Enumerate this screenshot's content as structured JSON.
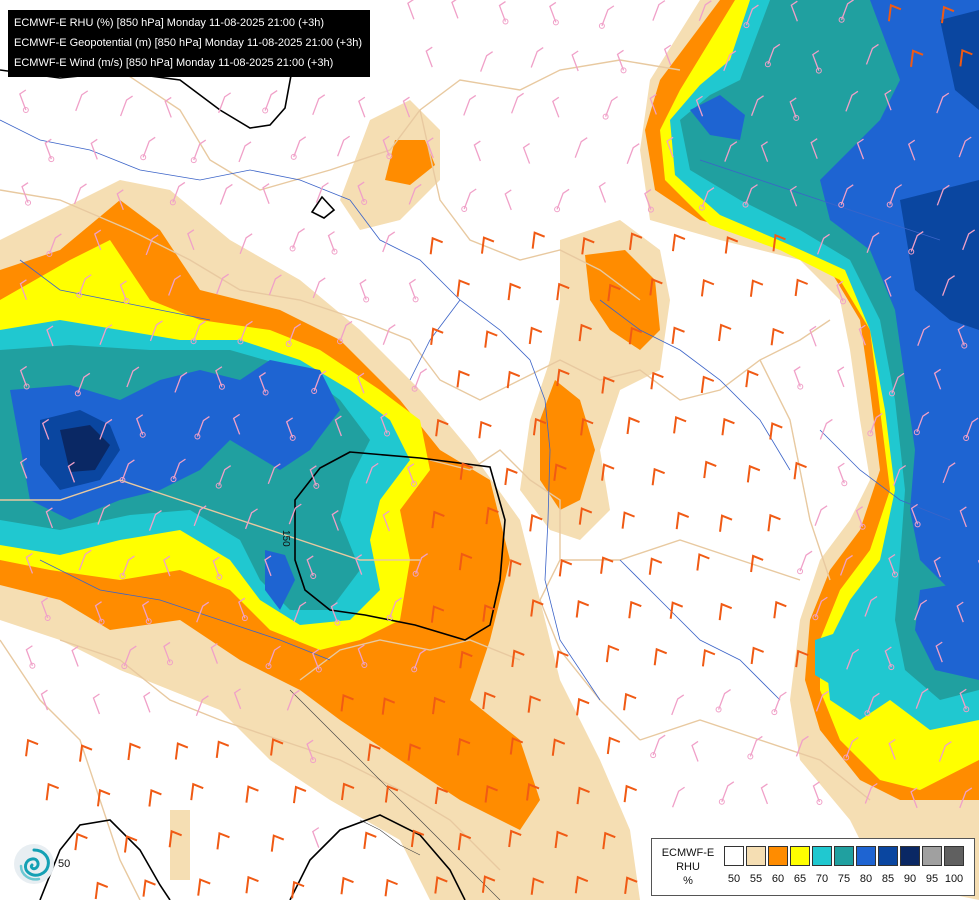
{
  "info": {
    "line1": "ECMWF-E RHU (%) [850 hPa] Monday 11-08-2025 21:00 (+3h)",
    "line2": "ECMWF-E Geopotential (m) [850 hPa] Monday 11-08-2025 21:00 (+3h)",
    "line3": "ECMWF-E Wind (m/s) [850 hPa] Monday 11-08-2025 21:00 (+3h)"
  },
  "legend": {
    "title_line1": "ECMWF-E",
    "title_line2": "RHU",
    "title_line3": "%",
    "levels": [
      {
        "label": "50",
        "color": "#ffffff"
      },
      {
        "label": "55",
        "color": "#f5deb3"
      },
      {
        "label": "60",
        "color": "#ff8c00"
      },
      {
        "label": "65",
        "color": "#ffff00"
      },
      {
        "label": "70",
        "color": "#20c8d0"
      },
      {
        "label": "75",
        "color": "#20a0a0"
      },
      {
        "label": "80",
        "color": "#1e64d2"
      },
      {
        "label": "85",
        "color": "#0a46a0"
      },
      {
        "label": "90",
        "color": "#0a2864"
      },
      {
        "label": "95",
        "color": "#a0a0a0"
      },
      {
        "label": "100",
        "color": "#606060"
      }
    ]
  },
  "contour": {
    "label": "150"
  },
  "logo": {
    "label": "50",
    "icon": "swirl-logo-icon"
  },
  "colors": {
    "border": "#e8c9a0",
    "river": "#3c64c8",
    "barb_weak": "#f0a0c8",
    "barb_strong": "#f05a14",
    "geopotential": "#000000"
  }
}
